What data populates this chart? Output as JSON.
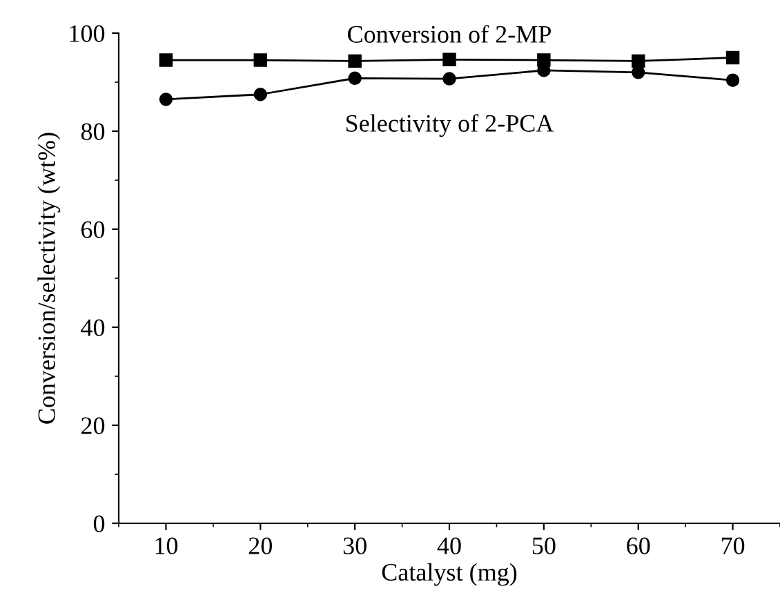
{
  "chart_data": {
    "type": "line",
    "xlabel": "Catalyst (mg)",
    "ylabel": "Conversion/selectivity (wt%)",
    "x": [
      10,
      20,
      30,
      40,
      50,
      60,
      70
    ],
    "series": [
      {
        "name": "Conversion of 2-MP",
        "color": "#000000",
        "marker": "square",
        "values": [
          94.5,
          94.5,
          94.3,
          94.6,
          94.5,
          94.3,
          95.0
        ]
      },
      {
        "name": "Selectivity of 2-PCA",
        "color": "#000000",
        "marker": "circle",
        "values": [
          86.5,
          87.5,
          90.8,
          90.7,
          92.4,
          92.0,
          90.4
        ]
      }
    ],
    "xlim": [
      5,
      75
    ],
    "xticks": [
      10,
      20,
      30,
      40,
      50,
      60,
      70
    ],
    "ylim": [
      0,
      100
    ],
    "yticks": [
      0,
      20,
      40,
      60,
      80,
      100
    ],
    "grid": false,
    "legend": false,
    "line_style": "solid"
  }
}
